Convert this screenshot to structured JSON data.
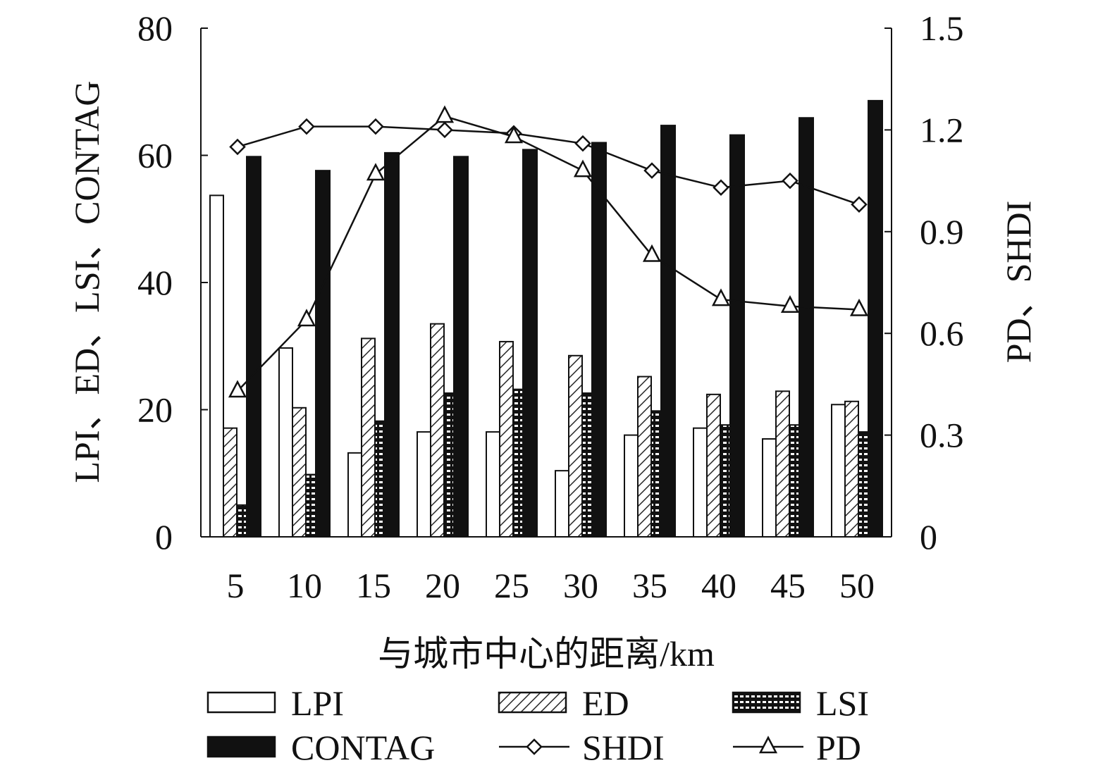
{
  "chart_data": {
    "type": "bar",
    "title": "",
    "xlabel": "与城市中心的距离/km",
    "ylabel": "LPI、ED、LSI、CONTAG",
    "y2label": "PD、SHDI",
    "categories": [
      "5",
      "10",
      "15",
      "20",
      "25",
      "30",
      "35",
      "40",
      "45",
      "50"
    ],
    "ylim": [
      0,
      80
    ],
    "y2lim": [
      0,
      1.5
    ],
    "yticks": [
      "0",
      "20",
      "40",
      "60",
      "80"
    ],
    "y2ticks": [
      "0",
      "0.3",
      "0.6",
      "0.9",
      "1.2",
      "1.5"
    ],
    "series": [
      {
        "name": "LPI",
        "type": "bar",
        "axis": "left",
        "values": [
          53.7,
          29.7,
          13.2,
          16.5,
          16.5,
          10.4,
          16.0,
          17.1,
          15.4,
          20.8
        ]
      },
      {
        "name": "ED",
        "type": "bar",
        "axis": "left",
        "values": [
          17.1,
          20.3,
          31.2,
          33.5,
          30.7,
          28.5,
          25.2,
          22.4,
          22.9,
          21.3
        ]
      },
      {
        "name": "LSI",
        "type": "bar",
        "axis": "left",
        "values": [
          5.0,
          9.8,
          18.2,
          22.6,
          23.2,
          22.6,
          19.8,
          17.6,
          17.6,
          16.5
        ]
      },
      {
        "name": "CONTAG",
        "type": "bar",
        "axis": "left",
        "values": [
          59.8,
          57.6,
          60.4,
          59.8,
          60.9,
          62.0,
          64.7,
          63.2,
          65.9,
          68.6
        ]
      },
      {
        "name": "SHDI",
        "type": "line",
        "axis": "right",
        "marker": "diamond",
        "values": [
          1.15,
          1.21,
          1.21,
          1.2,
          1.19,
          1.16,
          1.08,
          1.03,
          1.05,
          0.98
        ]
      },
      {
        "name": "PD",
        "type": "line",
        "axis": "right",
        "marker": "triangle",
        "values": [
          0.43,
          0.64,
          1.07,
          1.24,
          1.18,
          1.08,
          0.83,
          0.7,
          0.68,
          0.67
        ]
      }
    ],
    "legend": "bottom",
    "grid": false
  }
}
